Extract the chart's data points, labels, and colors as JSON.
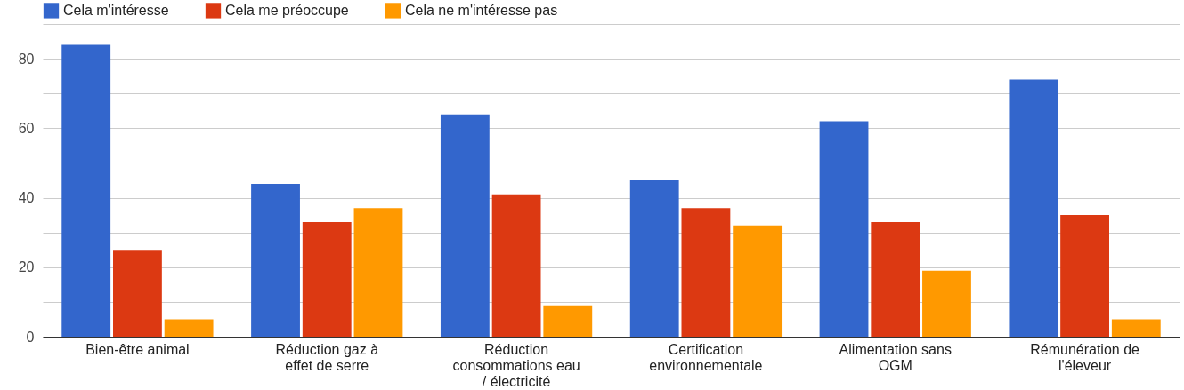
{
  "chart_data": {
    "type": "bar",
    "categories": [
      "Bien-être animal",
      "Réduction gaz à effet de serre",
      "Réduction consommations eau / électricité",
      "Certification environnementale",
      "Alimentation sans OGM",
      "Rémunération de l'éleveur"
    ],
    "series": [
      {
        "name": "Cela m'intéresse",
        "color": "#3366cc",
        "values": [
          84,
          44,
          64,
          45,
          62,
          74
        ]
      },
      {
        "name": "Cela me préoccupe",
        "color": "#dc3912",
        "values": [
          25,
          33,
          41,
          37,
          33,
          35
        ]
      },
      {
        "name": "Cela ne m'intéresse pas",
        "color": "#ff9900",
        "values": [
          5,
          37,
          9,
          32,
          19,
          5
        ]
      }
    ],
    "ylim": [
      0,
      90
    ],
    "yticks": [
      0,
      {
        "value": 10,
        "label": null
      },
      20,
      {
        "value": 30,
        "label": null
      },
      40,
      {
        "value": 50,
        "label": null
      },
      60,
      {
        "value": 70,
        "label": null
      },
      80,
      {
        "value": 90,
        "label": null
      }
    ],
    "grid": true,
    "legend": "top left"
  }
}
